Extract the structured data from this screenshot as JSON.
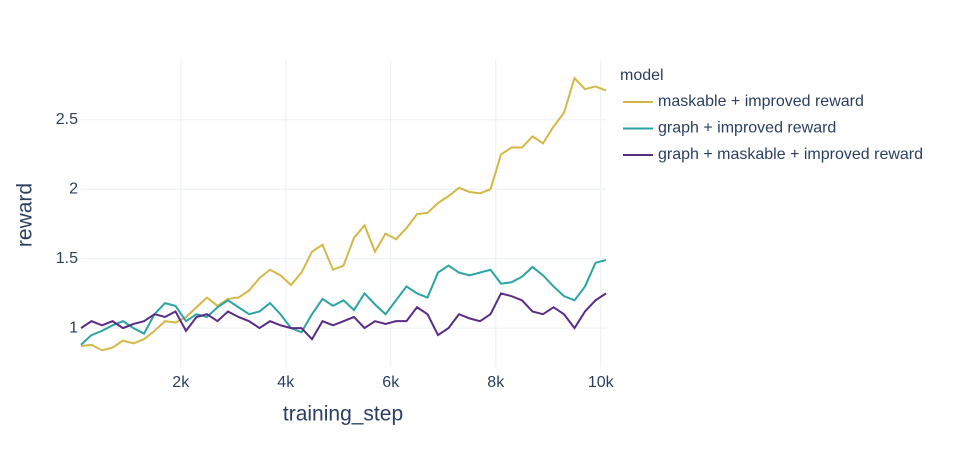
{
  "chart_data": {
    "type": "line",
    "x_label": "training_step",
    "y_label": "reward",
    "legend_title": "model",
    "legend_position": "right",
    "grid": true,
    "xlim": [
      100,
      10100
    ],
    "ylim": [
      0.72,
      2.93
    ],
    "xticks": [
      {
        "value": 2000,
        "label": "2k"
      },
      {
        "value": 4000,
        "label": "4k"
      },
      {
        "value": 6000,
        "label": "6k"
      },
      {
        "value": 8000,
        "label": "8k"
      },
      {
        "value": 10000,
        "label": "10k"
      }
    ],
    "yticks": [
      1,
      1.5,
      2,
      2.5
    ],
    "x": [
      100,
      300,
      500,
      700,
      900,
      1100,
      1300,
      1500,
      1700,
      1900,
      2100,
      2300,
      2500,
      2700,
      2900,
      3100,
      3300,
      3500,
      3700,
      3900,
      4100,
      4300,
      4500,
      4700,
      4900,
      5100,
      5300,
      5500,
      5700,
      5900,
      6100,
      6300,
      6500,
      6700,
      6900,
      7100,
      7300,
      7500,
      7700,
      7900,
      8100,
      8300,
      8500,
      8700,
      8900,
      9100,
      9300,
      9500,
      9700,
      9900,
      10100
    ],
    "series": [
      {
        "name": "maskable + improved reward",
        "color": "#d4b847",
        "values": [
          0.87,
          0.88,
          0.84,
          0.86,
          0.91,
          0.89,
          0.92,
          0.98,
          1.05,
          1.04,
          1.08,
          1.15,
          1.22,
          1.16,
          1.21,
          1.22,
          1.27,
          1.36,
          1.42,
          1.38,
          1.31,
          1.4,
          1.55,
          1.6,
          1.42,
          1.45,
          1.65,
          1.74,
          1.55,
          1.68,
          1.64,
          1.72,
          1.82,
          1.83,
          1.9,
          1.95,
          2.01,
          1.98,
          1.97,
          2.0,
          2.25,
          2.3,
          2.3,
          2.38,
          2.33,
          2.45,
          2.55,
          2.8,
          2.72,
          2.74,
          2.71
        ]
      },
      {
        "name": "graph + improved reward",
        "color": "#2aa4a4",
        "values": [
          0.88,
          0.95,
          0.98,
          1.02,
          1.05,
          1.0,
          0.96,
          1.1,
          1.18,
          1.16,
          1.05,
          1.1,
          1.08,
          1.15,
          1.2,
          1.15,
          1.1,
          1.12,
          1.18,
          1.1,
          1.0,
          0.97,
          1.1,
          1.21,
          1.16,
          1.2,
          1.13,
          1.25,
          1.17,
          1.1,
          1.2,
          1.3,
          1.25,
          1.22,
          1.4,
          1.45,
          1.4,
          1.38,
          1.4,
          1.42,
          1.32,
          1.33,
          1.37,
          1.44,
          1.38,
          1.3,
          1.23,
          1.2,
          1.3,
          1.47,
          1.49
        ]
      },
      {
        "name": "graph + maskable + improved reward",
        "color": "#5b2c86",
        "values": [
          1.0,
          1.05,
          1.02,
          1.05,
          1.0,
          1.03,
          1.05,
          1.1,
          1.08,
          1.12,
          0.98,
          1.08,
          1.1,
          1.05,
          1.12,
          1.08,
          1.05,
          1.0,
          1.05,
          1.02,
          1.0,
          1.0,
          0.92,
          1.05,
          1.02,
          1.05,
          1.08,
          1.0,
          1.05,
          1.03,
          1.05,
          1.05,
          1.15,
          1.1,
          0.95,
          1.0,
          1.1,
          1.07,
          1.05,
          1.1,
          1.25,
          1.23,
          1.2,
          1.12,
          1.1,
          1.15,
          1.1,
          1.0,
          1.12,
          1.2,
          1.25
        ]
      }
    ]
  }
}
